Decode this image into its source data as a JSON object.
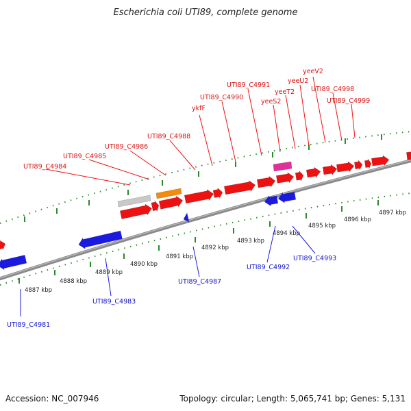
{
  "title": "Escherichia coli UTI89, complete genome",
  "footer": {
    "accession": "Accession: NC_007946",
    "summary": "Topology: circular; Length: 5,065,741 bp; Genes: 5,131"
  },
  "colors": {
    "forward_gene": "#ee1111",
    "reverse_gene": "#1a1ae0",
    "rrna_orange": "#f28c0a",
    "trna_pink": "#e0309a",
    "misc_gray": "#c8c8c8",
    "tick_green": "#2a8a2a",
    "backbone": "#8a8a8a"
  },
  "ticks": [
    {
      "label": "4887 kbp"
    },
    {
      "label": "4888 kbp"
    },
    {
      "label": "4889 kbp"
    },
    {
      "label": "4890 kbp"
    },
    {
      "label": "4891 kbp"
    },
    {
      "label": "4892 kbp"
    },
    {
      "label": "4893 kbp"
    },
    {
      "label": "4894 kbp"
    },
    {
      "label": "4895 kbp"
    },
    {
      "label": "4896 kbp"
    },
    {
      "label": "4897 kbp"
    }
  ],
  "forward_labels": [
    "UTI89_C4984",
    "UTI89_C4985",
    "UTI89_C4986",
    "UTI89_C4988",
    "ykfF",
    "UTI89_C4990",
    "UTI89_C4991",
    "yeeS2",
    "yeeT2",
    "yeeU2",
    "yeeV2",
    "UTI89_C4998",
    "UTI89_C4999"
  ],
  "reverse_labels": [
    "UTI89_C4981",
    "UTI89_C4983",
    "UTI89_C4987",
    "UTI89_C4992",
    "UTI89_C4993"
  ]
}
